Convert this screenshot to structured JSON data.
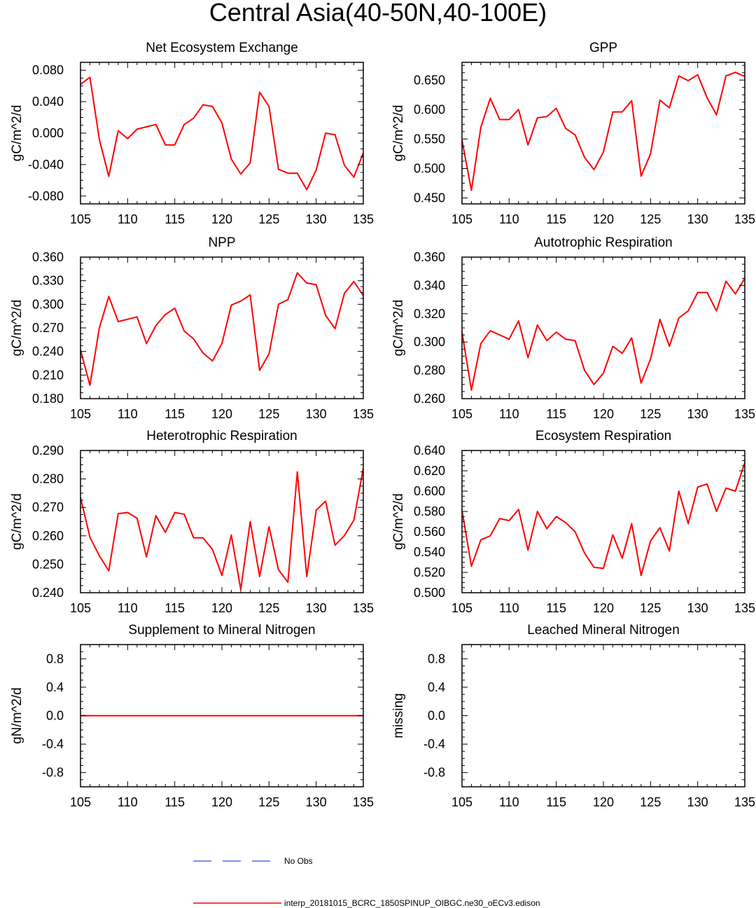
{
  "title": "Central Asia(40-50N,40-100E)",
  "colors": {
    "model_line": "#ff0000",
    "obs_line": "#4f6fe8",
    "axis": "#000000"
  },
  "legend": [
    {
      "label": "No Obs",
      "style": "dashed",
      "color": "#4f6fe8"
    },
    {
      "label": "interp_20181015_BCRC_1850SPINUP_OIBGC.ne30_oECv3.edison",
      "style": "solid",
      "color": "#ff0000"
    }
  ],
  "chart_data": [
    {
      "type": "line",
      "title": "Net Ecosystem Exchange",
      "ylabel": "gC/m^2/d",
      "xlim": [
        105,
        135
      ],
      "ylim": [
        -0.09,
        0.09
      ],
      "xticks": [
        105,
        110,
        115,
        120,
        125,
        130,
        135
      ],
      "yticks": [
        -0.08,
        -0.04,
        0.0,
        0.04,
        0.08
      ],
      "ytick_labels": [
        "-0.080",
        "-0.040",
        "0.000",
        "0.040",
        "0.080"
      ],
      "x": [
        105,
        106,
        107,
        108,
        109,
        110,
        111,
        112,
        113,
        114,
        115,
        116,
        117,
        118,
        119,
        120,
        121,
        122,
        123,
        124,
        125,
        126,
        127,
        128,
        129,
        130,
        131,
        132,
        133,
        134,
        135
      ],
      "series": [
        {
          "values": [
            0.062,
            0.071,
            -0.008,
            -0.055,
            0.003,
            -0.007,
            0.005,
            0.008,
            0.011,
            -0.015,
            -0.015,
            0.011,
            0.019,
            0.036,
            0.034,
            0.013,
            -0.033,
            -0.052,
            -0.038,
            0.052,
            0.034,
            -0.046,
            -0.051,
            -0.051,
            -0.072,
            -0.047,
            0.0,
            -0.002,
            -0.041,
            -0.056,
            -0.025
          ],
          "color": "#ff0000"
        }
      ]
    },
    {
      "type": "line",
      "title": "GPP",
      "ylabel": "gC/m^2/d",
      "xlim": [
        105,
        135
      ],
      "ylim": [
        0.44,
        0.68
      ],
      "xticks": [
        105,
        110,
        115,
        120,
        125,
        130,
        135
      ],
      "yticks": [
        0.45,
        0.5,
        0.55,
        0.6,
        0.65
      ],
      "ytick_labels": [
        "0.450",
        "0.500",
        "0.550",
        "0.600",
        "0.650"
      ],
      "x": [
        105,
        106,
        107,
        108,
        109,
        110,
        111,
        112,
        113,
        114,
        115,
        116,
        117,
        118,
        119,
        120,
        121,
        122,
        123,
        124,
        125,
        126,
        127,
        128,
        129,
        130,
        131,
        132,
        133,
        134,
        135
      ],
      "series": [
        {
          "values": [
            0.548,
            0.463,
            0.57,
            0.619,
            0.583,
            0.583,
            0.6,
            0.54,
            0.586,
            0.588,
            0.602,
            0.568,
            0.557,
            0.519,
            0.498,
            0.528,
            0.596,
            0.596,
            0.615,
            0.487,
            0.525,
            0.616,
            0.603,
            0.657,
            0.649,
            0.659,
            0.62,
            0.591,
            0.657,
            0.663,
            0.656
          ],
          "color": "#ff0000"
        }
      ]
    },
    {
      "type": "line",
      "title": "NPP",
      "ylabel": "gC/m^2/d",
      "xlim": [
        105,
        135
      ],
      "ylim": [
        0.18,
        0.36
      ],
      "xticks": [
        105,
        110,
        115,
        120,
        125,
        130,
        135
      ],
      "yticks": [
        0.18,
        0.21,
        0.24,
        0.27,
        0.3,
        0.33,
        0.36
      ],
      "ytick_labels": [
        "0.180",
        "0.210",
        "0.240",
        "0.270",
        "0.300",
        "0.330",
        "0.360"
      ],
      "x": [
        105,
        106,
        107,
        108,
        109,
        110,
        111,
        112,
        113,
        114,
        115,
        116,
        117,
        118,
        119,
        120,
        121,
        122,
        123,
        124,
        125,
        126,
        127,
        128,
        129,
        130,
        131,
        132,
        133,
        134,
        135
      ],
      "series": [
        {
          "values": [
            0.242,
            0.197,
            0.27,
            0.31,
            0.278,
            0.281,
            0.284,
            0.25,
            0.273,
            0.287,
            0.295,
            0.266,
            0.256,
            0.238,
            0.228,
            0.25,
            0.299,
            0.304,
            0.312,
            0.216,
            0.237,
            0.3,
            0.306,
            0.34,
            0.327,
            0.325,
            0.286,
            0.269,
            0.314,
            0.329,
            0.311
          ],
          "color": "#ff0000"
        }
      ]
    },
    {
      "type": "line",
      "title": "Autotrophic Respiration",
      "ylabel": "gC/m^2/d",
      "xlim": [
        105,
        135
      ],
      "ylim": [
        0.26,
        0.36
      ],
      "xticks": [
        105,
        110,
        115,
        120,
        125,
        130,
        135
      ],
      "yticks": [
        0.26,
        0.28,
        0.3,
        0.32,
        0.34,
        0.36
      ],
      "ytick_labels": [
        "0.260",
        "0.280",
        "0.300",
        "0.320",
        "0.340",
        "0.360"
      ],
      "x": [
        105,
        106,
        107,
        108,
        109,
        110,
        111,
        112,
        113,
        114,
        115,
        116,
        117,
        118,
        119,
        120,
        121,
        122,
        123,
        124,
        125,
        126,
        127,
        128,
        129,
        130,
        131,
        132,
        133,
        134,
        135
      ],
      "series": [
        {
          "values": [
            0.307,
            0.266,
            0.299,
            0.308,
            0.305,
            0.302,
            0.315,
            0.289,
            0.312,
            0.301,
            0.307,
            0.302,
            0.301,
            0.28,
            0.27,
            0.278,
            0.297,
            0.292,
            0.303,
            0.271,
            0.288,
            0.316,
            0.297,
            0.317,
            0.322,
            0.335,
            0.335,
            0.322,
            0.343,
            0.334,
            0.345
          ],
          "color": "#ff0000"
        }
      ]
    },
    {
      "type": "line",
      "title": "Heterotrophic Respiration",
      "ylabel": "gC/m^2/d",
      "xlim": [
        105,
        135
      ],
      "ylim": [
        0.24,
        0.29
      ],
      "xticks": [
        105,
        110,
        115,
        120,
        125,
        130,
        135
      ],
      "yticks": [
        0.24,
        0.25,
        0.26,
        0.27,
        0.28,
        0.29
      ],
      "ytick_labels": [
        "0.240",
        "0.250",
        "0.260",
        "0.270",
        "0.280",
        "0.290"
      ],
      "x": [
        105,
        106,
        107,
        108,
        109,
        110,
        111,
        112,
        113,
        114,
        115,
        116,
        117,
        118,
        119,
        120,
        121,
        122,
        123,
        124,
        125,
        126,
        127,
        128,
        129,
        130,
        131,
        132,
        133,
        134,
        135
      ],
      "series": [
        {
          "values": [
            0.2735,
            0.2595,
            0.253,
            0.2477,
            0.2678,
            0.2682,
            0.2662,
            0.2526,
            0.2671,
            0.2612,
            0.2682,
            0.2676,
            0.2593,
            0.2593,
            0.2552,
            0.2461,
            0.2603,
            0.2411,
            0.265,
            0.2457,
            0.2632,
            0.2481,
            0.2437,
            0.2825,
            0.2457,
            0.269,
            0.2722,
            0.2567,
            0.2601,
            0.2655,
            0.2838
          ],
          "color": "#ff0000"
        }
      ]
    },
    {
      "type": "line",
      "title": "Ecosystem Respiration",
      "ylabel": "gC/m^2/d",
      "xlim": [
        105,
        135
      ],
      "ylim": [
        0.5,
        0.64
      ],
      "xticks": [
        105,
        110,
        115,
        120,
        125,
        130,
        135
      ],
      "yticks": [
        0.5,
        0.52,
        0.54,
        0.56,
        0.58,
        0.6,
        0.62,
        0.64
      ],
      "ytick_labels": [
        "0.500",
        "0.520",
        "0.540",
        "0.560",
        "0.580",
        "0.600",
        "0.620",
        "0.640"
      ],
      "x": [
        105,
        106,
        107,
        108,
        109,
        110,
        111,
        112,
        113,
        114,
        115,
        116,
        117,
        118,
        119,
        120,
        121,
        122,
        123,
        124,
        125,
        126,
        127,
        128,
        129,
        130,
        131,
        132,
        133,
        134,
        135
      ],
      "series": [
        {
          "values": [
            0.581,
            0.526,
            0.552,
            0.556,
            0.573,
            0.571,
            0.582,
            0.542,
            0.58,
            0.563,
            0.575,
            0.569,
            0.56,
            0.539,
            0.525,
            0.524,
            0.557,
            0.534,
            0.568,
            0.517,
            0.551,
            0.564,
            0.541,
            0.6,
            0.568,
            0.604,
            0.607,
            0.58,
            0.603,
            0.6,
            0.628
          ],
          "color": "#ff0000"
        }
      ]
    },
    {
      "type": "line",
      "title": "Supplement to Mineral Nitrogen",
      "ylabel": "gN/m^2/d",
      "xlim": [
        105,
        135
      ],
      "ylim": [
        -1.0,
        1.0
      ],
      "xticks": [
        105,
        110,
        115,
        120,
        125,
        130,
        135
      ],
      "yticks": [
        -0.8,
        -0.4,
        0.0,
        0.4,
        0.8
      ],
      "ytick_labels": [
        "-0.8",
        "-0.4",
        "0.0",
        "0.4",
        "0.8"
      ],
      "x": [
        105,
        135
      ],
      "series": [
        {
          "values": [
            0.0,
            0.0
          ],
          "color": "#ff0000"
        }
      ]
    },
    {
      "type": "line",
      "title": "Leached Mineral Nitrogen",
      "ylabel": "missing",
      "xlim": [
        105,
        135
      ],
      "ylim": [
        -1.0,
        1.0
      ],
      "xticks": [
        105,
        110,
        115,
        120,
        125,
        130,
        135
      ],
      "yticks": [
        -0.8,
        -0.4,
        0.0,
        0.4,
        0.8
      ],
      "ytick_labels": [
        "-0.8",
        "-0.4",
        "0.0",
        "0.4",
        "0.8"
      ],
      "x": [],
      "series": []
    }
  ]
}
